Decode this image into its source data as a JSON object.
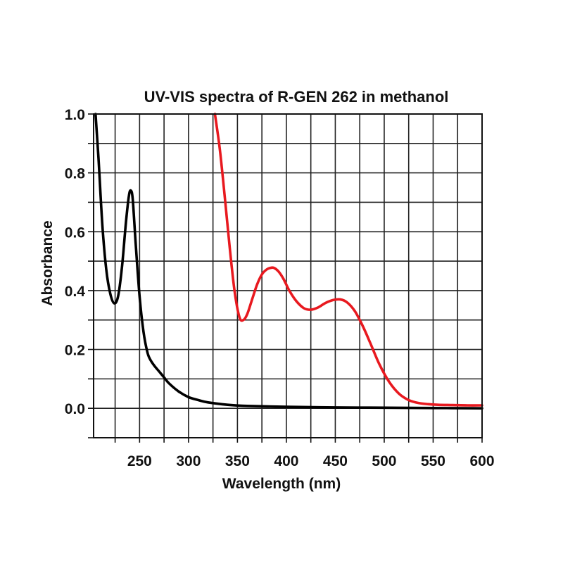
{
  "chart_data": {
    "type": "line",
    "title": "UV-VIS spectra of R-GEN 262 in methanol",
    "xlabel": "Wavelength (nm)",
    "ylabel": "Absorbance",
    "xlim": [
      203,
      600
    ],
    "ylim": [
      -0.1,
      1.0
    ],
    "x_ticks": [
      250,
      300,
      350,
      400,
      450,
      500,
      550,
      600
    ],
    "x_tick_labels": [
      "250",
      "300",
      "350",
      "400",
      "450",
      "500",
      "550",
      "600"
    ],
    "y_ticks": [
      0.0,
      0.2,
      0.4,
      0.6,
      0.8,
      1.0
    ],
    "y_tick_labels": [
      "0.0",
      "0.2",
      "0.4",
      "0.6",
      "0.8",
      "1.0"
    ],
    "grid": true,
    "series": [
      {
        "name": "black-spectrum",
        "color": "#000000",
        "x": [
          205,
          208,
          212,
          216,
          220,
          224,
          228,
          232,
          236,
          239,
          241,
          243,
          246,
          250,
          254,
          258,
          261,
          265,
          270,
          275,
          280,
          290,
          300,
          310,
          320,
          340,
          360,
          400,
          450,
          500,
          550,
          600
        ],
        "y": [
          1.0,
          0.85,
          0.62,
          0.47,
          0.39,
          0.357,
          0.38,
          0.48,
          0.63,
          0.72,
          0.74,
          0.71,
          0.56,
          0.38,
          0.26,
          0.19,
          0.165,
          0.145,
          0.125,
          0.105,
          0.085,
          0.057,
          0.038,
          0.028,
          0.02,
          0.012,
          0.008,
          0.005,
          0.003,
          0.002,
          0.001,
          0.0
        ]
      },
      {
        "name": "red-spectrum",
        "color": "#e8191f",
        "x": [
          327,
          332,
          337,
          342,
          347,
          352,
          356,
          360,
          365,
          370,
          375,
          380,
          385,
          388,
          392,
          397,
          403,
          410,
          418,
          425,
          432,
          440,
          448,
          455,
          462,
          470,
          478,
          486,
          495,
          505,
          515,
          525,
          535,
          545,
          555,
          570,
          585,
          600
        ],
        "y": [
          1.0,
          0.88,
          0.72,
          0.55,
          0.4,
          0.31,
          0.3,
          0.32,
          0.37,
          0.42,
          0.455,
          0.472,
          0.478,
          0.476,
          0.465,
          0.44,
          0.4,
          0.365,
          0.34,
          0.335,
          0.342,
          0.358,
          0.368,
          0.37,
          0.36,
          0.33,
          0.28,
          0.22,
          0.15,
          0.09,
          0.05,
          0.028,
          0.018,
          0.014,
          0.012,
          0.011,
          0.01,
          0.01
        ]
      }
    ]
  }
}
